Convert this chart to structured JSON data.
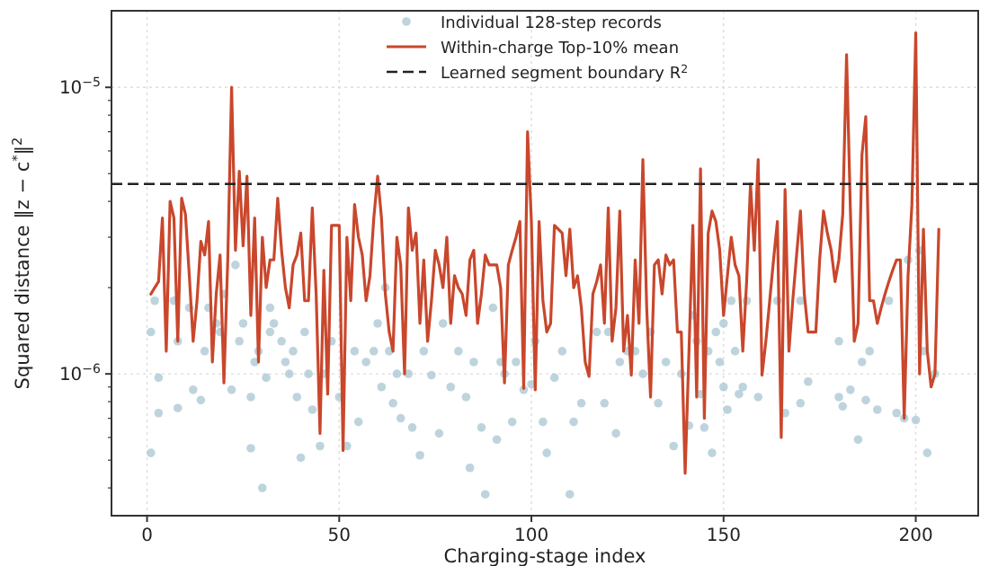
{
  "chart_data": {
    "type": "line",
    "xlabel": "Charging-stage index",
    "ylabel": "Squared distance ‖z − c$^{*}$‖$^{2}$",
    "log": "y",
    "grid": true,
    "legend": "top",
    "xlim": [
      -9.25,
      216.25
    ],
    "xticks": [
      0,
      50,
      100,
      150,
      200
    ],
    "ylim": [
      3.2e-07,
      1.85e-05
    ],
    "yticks": [
      {
        "value": 4e-07,
        "label": null
      },
      {
        "value": 5e-07,
        "label": null
      },
      {
        "value": 6e-07,
        "label": null
      },
      {
        "value": 7e-07,
        "label": null
      },
      {
        "value": 8e-07,
        "label": null
      },
      {
        "value": 9e-07,
        "label": null
      },
      {
        "value": 1e-06,
        "label": "10$^{−6}$"
      },
      {
        "value": 2e-06,
        "label": null
      },
      {
        "value": 3e-06,
        "label": null
      },
      {
        "value": 4e-06,
        "label": null
      },
      {
        "value": 5e-06,
        "label": null
      },
      {
        "value": 6e-06,
        "label": null
      },
      {
        "value": 7e-06,
        "label": null
      },
      {
        "value": 8e-06,
        "label": null
      },
      {
        "value": 9e-06,
        "label": null
      },
      {
        "value": 1e-05,
        "label": "10$^{−5}$"
      }
    ],
    "ref_lines": [
      {
        "axis": "y",
        "value": 4.6e-06,
        "label": "Learned segment boundary R$^{2}$",
        "color": "#222222",
        "line_style": "dashed"
      }
    ],
    "x": [
      1,
      2,
      3,
      4,
      5,
      6,
      7,
      8,
      9,
      10,
      11,
      12,
      13,
      14,
      15,
      16,
      17,
      18,
      19,
      20,
      21,
      22,
      23,
      24,
      25,
      26,
      27,
      28,
      29,
      30,
      31,
      32,
      33,
      34,
      35,
      36,
      37,
      38,
      39,
      40,
      41,
      42,
      43,
      44,
      45,
      46,
      47,
      48,
      49,
      50,
      51,
      52,
      53,
      54,
      55,
      56,
      57,
      58,
      59,
      60,
      61,
      62,
      63,
      64,
      65,
      66,
      67,
      68,
      69,
      70,
      71,
      72,
      73,
      74,
      75,
      76,
      77,
      78,
      79,
      80,
      81,
      82,
      83,
      84,
      85,
      86,
      87,
      88,
      89,
      90,
      91,
      92,
      93,
      94,
      95,
      96,
      97,
      98,
      99,
      100,
      101,
      102,
      103,
      104,
      105,
      106,
      107,
      108,
      109,
      110,
      111,
      112,
      113,
      114,
      115,
      116,
      117,
      118,
      119,
      120,
      121,
      122,
      123,
      124,
      125,
      126,
      127,
      128,
      129,
      130,
      131,
      132,
      133,
      134,
      135,
      136,
      137,
      138,
      139,
      140,
      141,
      142,
      143,
      144,
      145,
      146,
      147,
      148,
      149,
      150,
      151,
      152,
      153,
      154,
      155,
      156,
      157,
      158,
      159,
      160,
      161,
      162,
      163,
      164,
      165,
      166,
      167,
      168,
      169,
      170,
      171,
      172,
      173,
      174,
      175,
      176,
      177,
      178,
      179,
      180,
      181,
      182,
      183,
      184,
      185,
      186,
      187,
      188,
      189,
      190,
      191,
      192,
      193,
      194,
      195,
      196,
      197,
      198,
      199,
      200,
      201,
      202,
      203,
      204,
      205,
      206
    ],
    "series": [
      {
        "type": "scatter",
        "name": "Individual 128-step records",
        "color": "#a3c2cf",
        "marker": "circle",
        "x": [
          1,
          1,
          2,
          3,
          3,
          7,
          8,
          8,
          11,
          12,
          14,
          15,
          16,
          18,
          19,
          20,
          22,
          23,
          24,
          25,
          27,
          27,
          28,
          29,
          30,
          31,
          32,
          32,
          33,
          35,
          36,
          37,
          38,
          39,
          40,
          41,
          42,
          43,
          45,
          46,
          48,
          50,
          52,
          54,
          55,
          57,
          59,
          60,
          61,
          62,
          63,
          64,
          65,
          66,
          68,
          69,
          71,
          72,
          74,
          76,
          77,
          79,
          81,
          83,
          84,
          85,
          87,
          88,
          90,
          91,
          92,
          93,
          95,
          96,
          98,
          100,
          101,
          103,
          104,
          106,
          108,
          110,
          111,
          113,
          117,
          119,
          120,
          122,
          123,
          125,
          127,
          129,
          131,
          133,
          135,
          137,
          139,
          141,
          142,
          143,
          144,
          145,
          146,
          147,
          148,
          149,
          150,
          150,
          151,
          152,
          153,
          154,
          155,
          156,
          159,
          164,
          166,
          170,
          170,
          172,
          180,
          180,
          181,
          183,
          185,
          186,
          187,
          188,
          190,
          193,
          195,
          197,
          198,
          200,
          201,
          202,
          203,
          205
        ],
        "values": [
          1.4e-06,
          5.3e-07,
          1.8e-06,
          9.7e-07,
          7.3e-07,
          1.8e-06,
          1.3e-06,
          7.6e-07,
          1.7e-06,
          8.8e-07,
          8.1e-07,
          1.2e-06,
          1.7e-06,
          1.5e-06,
          1.4e-06,
          1.9e-06,
          8.8e-07,
          2.4e-06,
          1.3e-06,
          1.5e-06,
          5.5e-07,
          8.3e-07,
          1.1e-06,
          1.2e-06,
          4e-07,
          9.7e-07,
          1.7e-06,
          1.4e-06,
          1.5e-06,
          1.3e-06,
          1.1e-06,
          1e-06,
          1.2e-06,
          8.3e-07,
          5.1e-07,
          1.4e-06,
          1e-06,
          7.5e-07,
          5.6e-07,
          1e-06,
          1.3e-06,
          8.3e-07,
          5.6e-07,
          1.2e-06,
          6.8e-07,
          1.1e-06,
          1.2e-06,
          1.5e-06,
          9e-07,
          2e-06,
          1.2e-06,
          7.9e-07,
          1e-06,
          7e-07,
          1e-06,
          6.5e-07,
          5.2e-07,
          1.2e-06,
          9.9e-07,
          6.2e-07,
          1.5e-06,
          9e-07,
          1.2e-06,
          8.3e-07,
          4.7e-07,
          1.1e-06,
          6.5e-07,
          3.8e-07,
          1.7e-06,
          5.9e-07,
          1.1e-06,
          1e-06,
          6.8e-07,
          1.1e-06,
          8.8e-07,
          9.2e-07,
          1.3e-06,
          6.8e-07,
          5.3e-07,
          9.7e-07,
          1.2e-06,
          3.8e-07,
          6.8e-07,
          7.9e-07,
          1.4e-06,
          7.9e-07,
          1.4e-06,
          6.2e-07,
          1.1e-06,
          1.2e-06,
          1.2e-06,
          1e-06,
          1.4e-06,
          7.9e-07,
          1.1e-06,
          5.6e-07,
          1e-06,
          6.6e-07,
          1.6e-06,
          1.3e-06,
          8.5e-07,
          6.5e-07,
          1.2e-06,
          5.3e-07,
          1.4e-06,
          1.1e-06,
          1.5e-06,
          9e-07,
          7.5e-07,
          1.8e-06,
          1.2e-06,
          8.5e-07,
          9e-07,
          1.8e-06,
          8.3e-07,
          1.8e-06,
          7.3e-07,
          1.8e-06,
          7.9e-07,
          9.4e-07,
          1.3e-06,
          8.3e-07,
          7.7e-07,
          8.8e-07,
          5.9e-07,
          1.1e-06,
          8.1e-07,
          1.2e-06,
          7.5e-07,
          1.8e-06,
          7.3e-07,
          7e-07,
          2.5e-06,
          6.9e-07,
          2.7e-06,
          1.2e-06,
          5.3e-07,
          1e-06
        ]
      },
      {
        "name": "Within-charge Top-10% mean",
        "color": "#c9472c",
        "values": [
          1.9e-06,
          2e-06,
          2.1e-06,
          3.5e-06,
          1.2e-06,
          4e-06,
          3.5e-06,
          1.3e-06,
          4.1e-06,
          3.6e-06,
          2.2e-06,
          1.3e-06,
          1.8e-06,
          2.9e-06,
          2.6e-06,
          3.4e-06,
          1.1e-06,
          1.9e-06,
          2.6e-06,
          9.3e-07,
          2.5e-06,
          1e-05,
          2.7e-06,
          5.1e-06,
          2.8e-06,
          4.9e-06,
          1.6e-06,
          3.5e-06,
          1.1e-06,
          3e-06,
          2e-06,
          2.5e-06,
          2.5e-06,
          4.1e-06,
          2.7e-06,
          2e-06,
          1.7e-06,
          2.4e-06,
          2.6e-06,
          3.1e-06,
          1.8e-06,
          1.8e-06,
          3.8e-06,
          1.9e-06,
          6.2e-07,
          2.3e-06,
          8.5e-07,
          3.3e-06,
          3.3e-06,
          3.3e-06,
          5.4e-07,
          3e-06,
          1.8e-06,
          3.9e-06,
          3e-06,
          2.6e-06,
          1.8e-06,
          2.2e-06,
          3.5e-06,
          4.9e-06,
          3.5e-06,
          1.9e-06,
          1.4e-06,
          1.2e-06,
          3e-06,
          2.4e-06,
          1e-06,
          3.8e-06,
          2.7e-06,
          3.1e-06,
          1.5e-06,
          2.5e-06,
          1.3e-06,
          1.8e-06,
          2.7e-06,
          2.4e-06,
          2e-06,
          3e-06,
          1.5e-06,
          2.2e-06,
          2e-06,
          1.9e-06,
          1.6e-06,
          2.5e-06,
          2.7e-06,
          1.5e-06,
          1.9e-06,
          2.6e-06,
          2.4e-06,
          2.4e-06,
          2.4e-06,
          2e-06,
          9.3e-07,
          2.4e-06,
          2.7e-06,
          3e-06,
          3.4e-06,
          8.9e-07,
          7e-06,
          3.4e-06,
          8.8e-07,
          3.4e-06,
          1.8e-06,
          1.4e-06,
          1.5e-06,
          3.3e-06,
          3.2e-06,
          3.1e-06,
          2.2e-06,
          3.2e-06,
          2e-06,
          2.2e-06,
          1.7e-06,
          1.1e-06,
          9.8e-07,
          1.9e-06,
          2.1e-06,
          2.4e-06,
          1.5e-06,
          3.8e-06,
          1.3e-06,
          1.7e-06,
          3.7e-06,
          1.2e-06,
          1.6e-06,
          9.9e-07,
          2.5e-06,
          1.5e-06,
          5.6e-06,
          1.7e-06,
          8.3e-07,
          2.4e-06,
          2.5e-06,
          1.9e-06,
          2.6e-06,
          2.4e-06,
          2.5e-06,
          1.4e-06,
          1.4e-06,
          4.5e-07,
          1.2e-06,
          3.3e-06,
          8.3e-07,
          5.2e-06,
          7e-07,
          3.1e-06,
          3.7e-06,
          3.4e-06,
          2.7e-06,
          1.6e-06,
          2.2e-06,
          3e-06,
          2.4e-06,
          2.2e-06,
          1.2e-06,
          2.1e-06,
          4.6e-06,
          2.7e-06,
          5.6e-06,
          9.9e-07,
          1.3e-06,
          1.8e-06,
          2.5e-06,
          3.4e-06,
          6e-07,
          4.4e-06,
          1.2e-06,
          1.8e-06,
          2.6e-06,
          3.7e-06,
          1.9e-06,
          1.4e-06,
          1.4e-06,
          1.4e-06,
          2.5e-06,
          3.7e-06,
          3.1e-06,
          2.7e-06,
          2.1e-06,
          2.5e-06,
          3.6e-06,
          1.3e-05,
          3.7e-06,
          1.3e-06,
          1.5e-06,
          5.8e-06,
          7.9e-06,
          1.8e-06,
          1.8e-06,
          1.5e-06,
          1.7e-06,
          1.9e-06,
          2.1e-06,
          2.3e-06,
          2.5e-06,
          2.5e-06,
          7e-07,
          2.2e-06,
          3.9e-06,
          1.55e-05,
          1e-06,
          3.2e-06,
          1.2e-06,
          9e-07,
          1e-06,
          3.2e-06
        ]
      }
    ]
  }
}
